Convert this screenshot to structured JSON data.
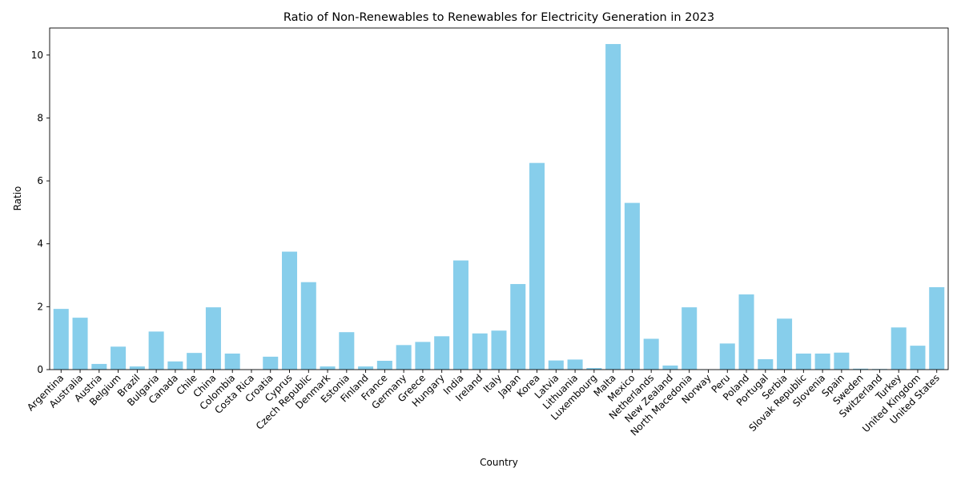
{
  "chart_data": {
    "type": "bar",
    "title": "Ratio of Non-Renewables to Renewables for Electricity Generation in 2023",
    "xlabel": "Country",
    "ylabel": "Ratio",
    "ylim": [
      0,
      10.86
    ],
    "yticks": [
      0,
      2,
      4,
      6,
      8,
      10
    ],
    "grid": false,
    "legend": "none",
    "bar_color": "#87ceeb",
    "categories": [
      "Argentina",
      "Australia",
      "Austria",
      "Belgium",
      "Brazil",
      "Bulgaria",
      "Canada",
      "Chile",
      "China",
      "Colombia",
      "Costa Rica",
      "Croatia",
      "Cyprus",
      "Czech Republic",
      "Denmark",
      "Estonia",
      "Finland",
      "France",
      "Germany",
      "Greece",
      "Hungary",
      "India",
      "Ireland",
      "Italy",
      "Japan",
      "Korea",
      "Latvia",
      "Lithuania",
      "Luxembourg",
      "Malta",
      "Mexico",
      "Netherlands",
      "New Zealand",
      "North Macedonia",
      "Norway",
      "Peru",
      "Poland",
      "Portugal",
      "Serbia",
      "Slovak Republic",
      "Slovenia",
      "Spain",
      "Sweden",
      "Switzerland",
      "Turkey",
      "United Kingdom",
      "United States"
    ],
    "values": [
      1.93,
      1.65,
      0.18,
      0.73,
      0.1,
      1.21,
      0.26,
      0.53,
      1.98,
      0.51,
      0.01,
      0.41,
      3.75,
      2.78,
      0.1,
      1.19,
      0.1,
      0.28,
      0.78,
      0.88,
      1.06,
      3.47,
      1.15,
      1.24,
      2.72,
      6.57,
      0.29,
      0.32,
      0.05,
      10.35,
      5.3,
      0.98,
      0.13,
      1.98,
      0.01,
      0.83,
      2.39,
      0.33,
      1.62,
      0.51,
      0.51,
      0.54,
      0.03,
      0.02,
      1.34,
      0.76,
      2.62
    ]
  }
}
